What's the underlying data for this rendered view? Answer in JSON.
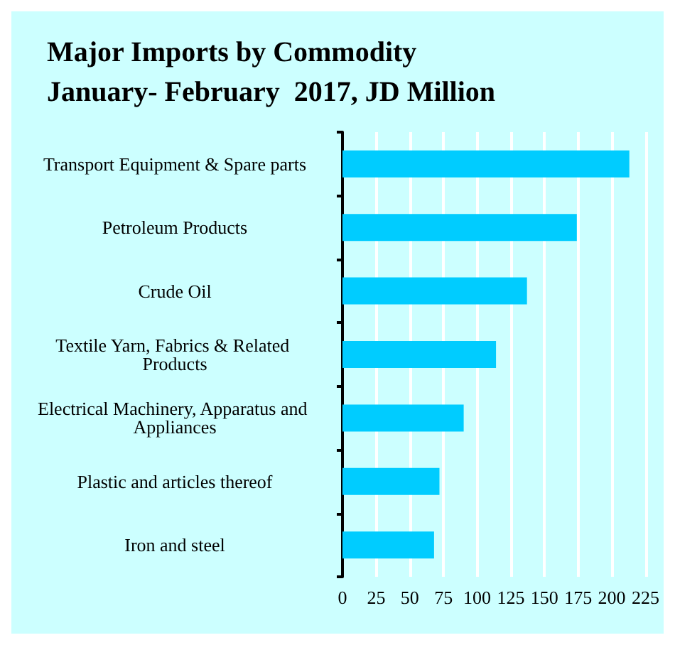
{
  "chart_data": {
    "type": "bar",
    "orientation": "horizontal",
    "title": "Major Imports by Commodity\nJanuary- February  2017, JD Million",
    "categories": [
      "Transport Equipment & Spare parts",
      "Petroleum Products",
      "Crude Oil",
      "Textile Yarn, Fabrics & Related Products",
      "Electrical Machinery, Apparatus and Appliances",
      "Plastic and articles thereof",
      "Iron and steel"
    ],
    "values": [
      213,
      174,
      137,
      114,
      90,
      72,
      68
    ],
    "color": "#00ccff",
    "xlim": [
      0,
      225
    ],
    "xticks": [
      0,
      25,
      50,
      75,
      100,
      125,
      150,
      175,
      200,
      225
    ],
    "grid": "x"
  }
}
